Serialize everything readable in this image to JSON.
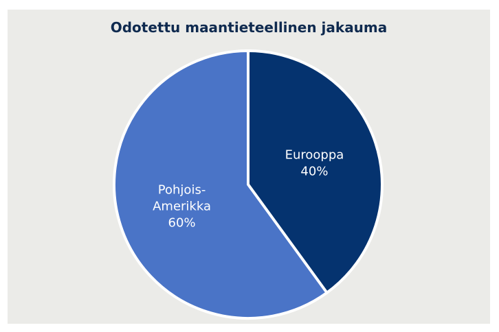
{
  "chart_data": {
    "type": "pie",
    "title": "Odotettu maantieteellinen jakauma",
    "slices": [
      {
        "label_lines": [
          "Eurooppa"
        ],
        "value": 40,
        "value_label": "40%",
        "color": "#05336f"
      },
      {
        "label_lines": [
          "Pohjois-",
          "Amerikka"
        ],
        "value": 60,
        "value_label": "60%",
        "color": "#4a74c7"
      }
    ],
    "start_angle_deg": 0,
    "direction": "clockwise",
    "background_color": "#ebebe8",
    "separator_color": "#ffffff"
  }
}
